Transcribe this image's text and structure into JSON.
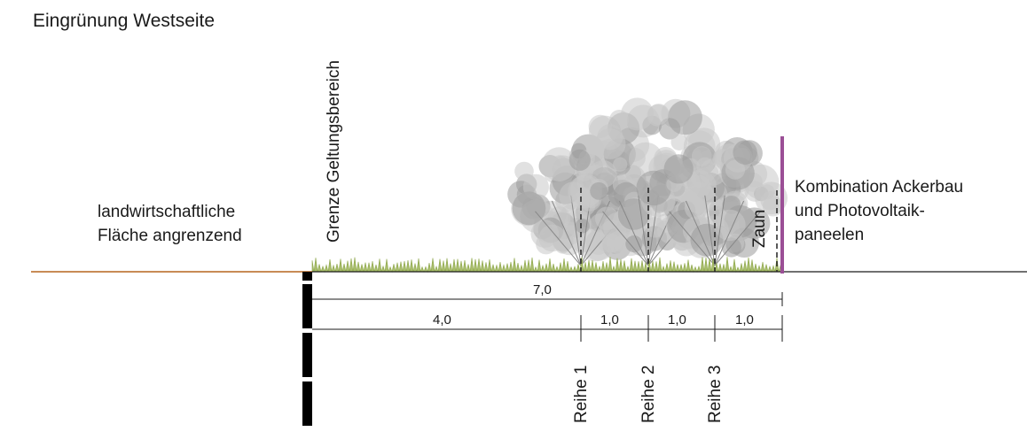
{
  "title": "Eingrünung Westseite",
  "left_note": [
    "landwirtschaftliche",
    "Fläche angrenzend"
  ],
  "right_note": [
    "Kombination Ackerbau",
    "und Photovoltaik-",
    "paneelen"
  ],
  "boundary_label": "Grenze Geltungsbereich",
  "fence_label": "Zaun",
  "rows": [
    "Reihe 1",
    "Reihe 2",
    "Reihe 3"
  ],
  "dimensions": {
    "total": "7,0",
    "segments": [
      "4,0",
      "1,0",
      "1,0",
      "1,0"
    ]
  },
  "colors": {
    "ground_left": "#b5651d",
    "ground_right": "#1a1a1a",
    "grass": "#a8bd6a",
    "fence": "#9b4f96",
    "tree_light": "#c8c8c8",
    "tree_dark": "#9a9a9a",
    "boundary_bar": "#000000"
  }
}
